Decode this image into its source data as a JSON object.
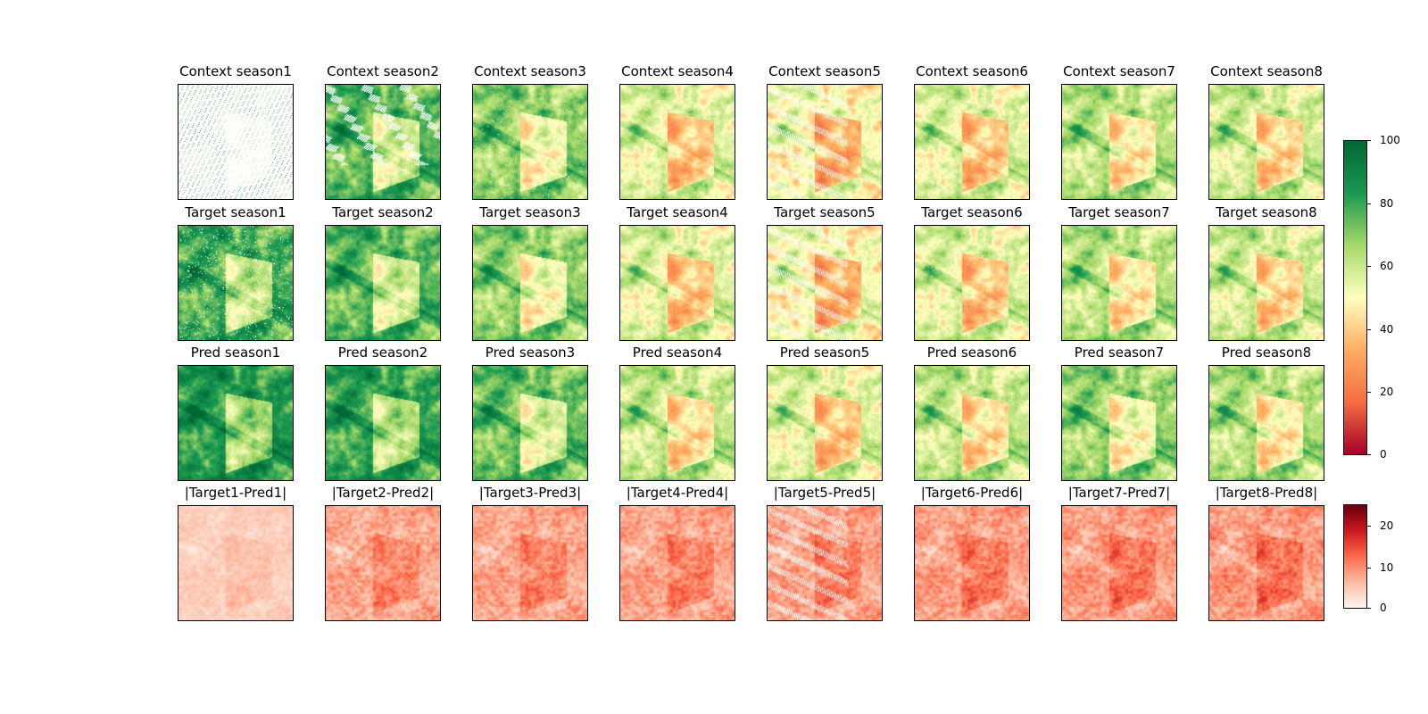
{
  "rows": [
    {
      "name": "context",
      "titles": [
        "Context season1",
        "Context season2",
        "Context season3",
        "Context season4",
        "Context season5",
        "Context season6",
        "Context season7",
        "Context season8"
      ]
    },
    {
      "name": "target",
      "titles": [
        "Target season1",
        "Target season2",
        "Target season3",
        "Target season4",
        "Target season5",
        "Target season6",
        "Target season7",
        "Target season8"
      ]
    },
    {
      "name": "pred",
      "titles": [
        "Pred season1",
        "Pred season2",
        "Pred season3",
        "Pred season4",
        "Pred season5",
        "Pred season6",
        "Pred season7",
        "Pred season8"
      ]
    },
    {
      "name": "error",
      "titles": [
        "|Target1-Pred1|",
        "|Target2-Pred2|",
        "|Target3-Pred3|",
        "|Target4-Pred4|",
        "|Target5-Pred5|",
        "|Target6-Pred6|",
        "|Target7-Pred7|",
        "|Target8-Pred8|"
      ]
    }
  ],
  "colorbar_main": {
    "colormap": "RdYlGn",
    "ticks": [
      "0",
      "20",
      "40",
      "60",
      "80",
      "100"
    ],
    "colors": [
      "#a50026",
      "#f46d43",
      "#fdae61",
      "#ffffbf",
      "#a6d96a",
      "#1a9850",
      "#006837"
    ]
  },
  "colorbar_error": {
    "colormap": "Reds",
    "ticks": [
      "0",
      "10",
      "20"
    ],
    "colors": [
      "#fff5f0",
      "#fcbba1",
      "#fb6a4a",
      "#cb181d",
      "#67000d"
    ]
  }
}
